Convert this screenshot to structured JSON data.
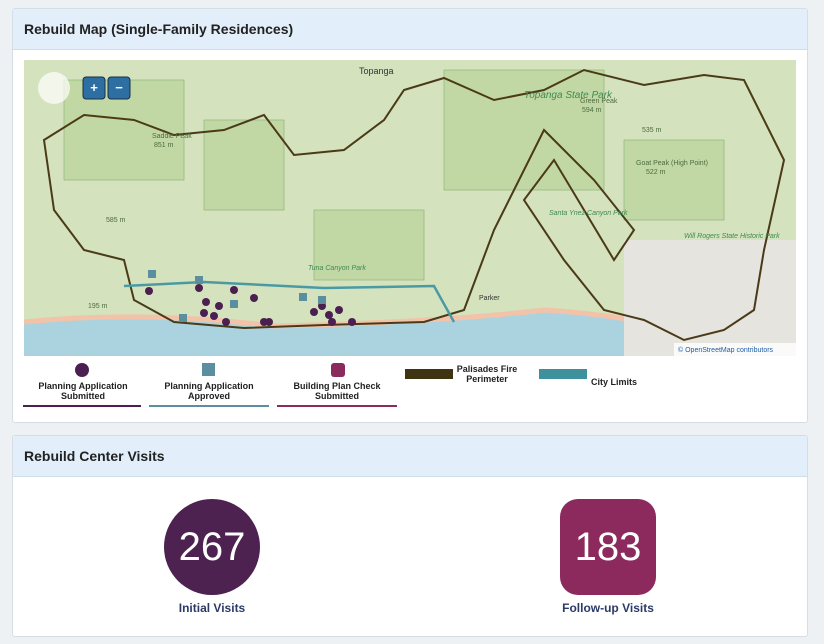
{
  "map_panel": {
    "title": "Rebuild Map (Single-Family Residences)",
    "zoom_in": "+",
    "zoom_out": "−",
    "attribution": "© OpenStreetMap contributors",
    "labels": [
      "Topanga",
      "Topanga State Park",
      "Green Peak",
      "594 m",
      "535 m",
      "Goat Peak (High Point)",
      "522 m",
      "Saddle Peak",
      "851 m",
      "585 m",
      "195 m",
      "Tuna Canyon Park",
      "Santa Ynez Canyon Park",
      "Will Rogers State Historic Park",
      "Parker"
    ],
    "legend": [
      "Planning Application Submitted",
      "Planning Application Approved",
      "Building Plan Check Submitted",
      "Palisades Fire Perimeter",
      "City Limits"
    ]
  },
  "visits_panel": {
    "title": "Rebuild Center Visits",
    "stats": [
      {
        "value": 267,
        "label": "Initial Visits"
      },
      {
        "value": 183,
        "label": "Follow-up Visits"
      }
    ]
  }
}
